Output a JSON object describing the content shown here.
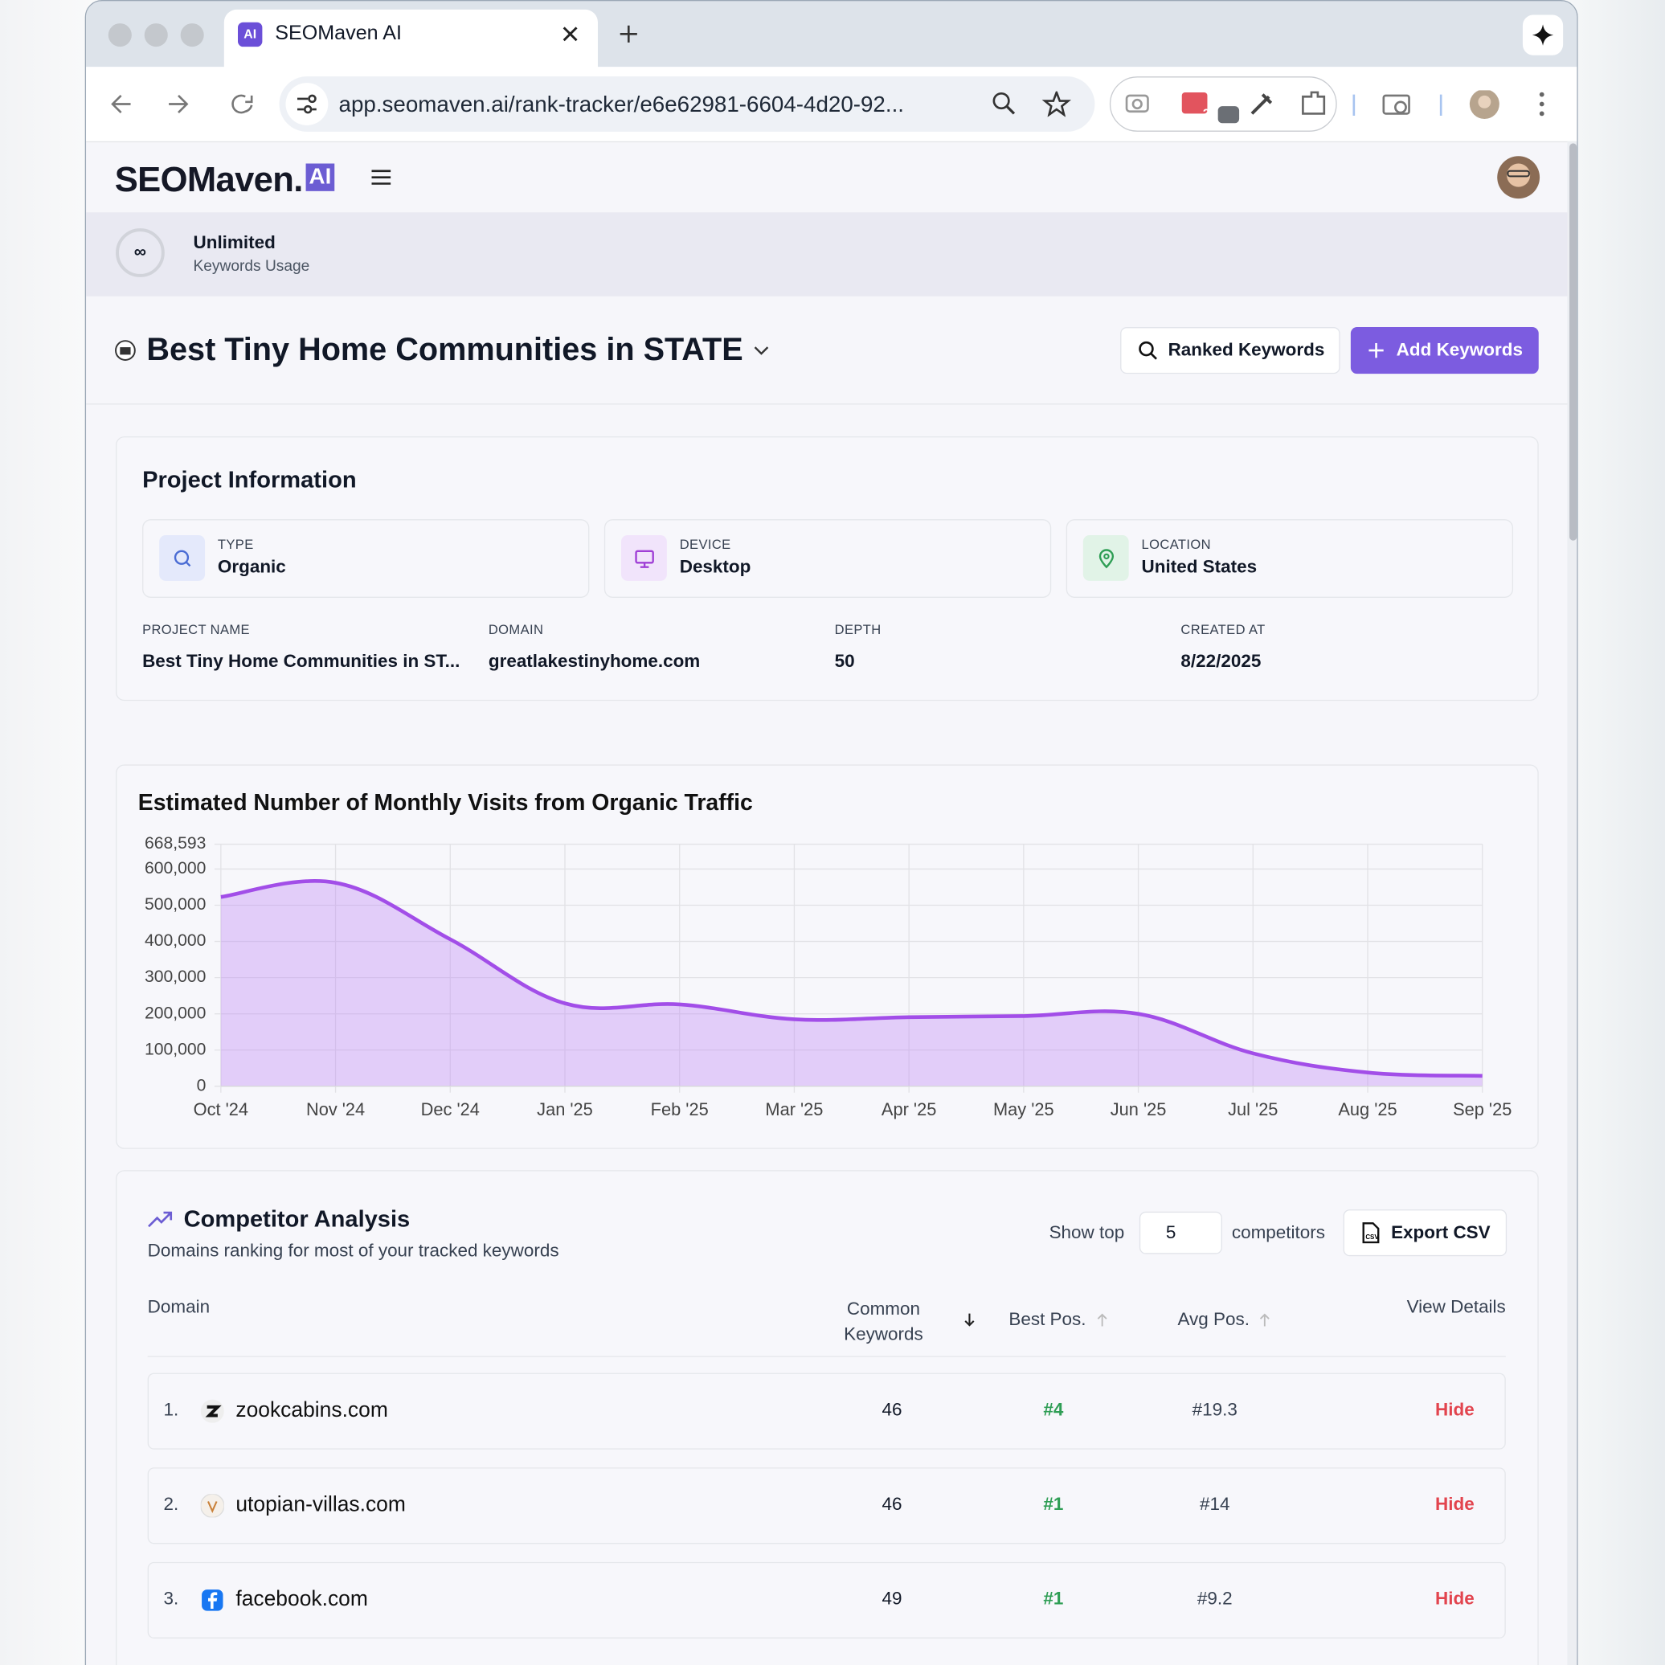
{
  "browser": {
    "tab_title": "SEOMaven AI",
    "url": "app.seomaven.ai/rank-tracker/e6e62981-6604-4d20-92...",
    "extension_badge": "2"
  },
  "app": {
    "logo": "SEOMaven.",
    "logo_badge": "AI",
    "usage": {
      "icon": "∞",
      "title": "Unlimited",
      "subtitle": "Keywords Usage"
    }
  },
  "project": {
    "title": "Best Tiny Home Communities in STATE",
    "ranked_button": "Ranked Keywords",
    "add_button": "Add Keywords"
  },
  "project_info": {
    "heading": "Project Information",
    "cards": [
      {
        "label": "TYPE",
        "value": "Organic"
      },
      {
        "label": "DEVICE",
        "value": "Desktop"
      },
      {
        "label": "LOCATION",
        "value": "United States"
      }
    ],
    "fields": [
      {
        "label": "PROJECT NAME",
        "value": "Best Tiny Home Communities in ST..."
      },
      {
        "label": "DOMAIN",
        "value": "greatlakestinyhome.com"
      },
      {
        "label": "DEPTH",
        "value": "50"
      },
      {
        "label": "CREATED AT",
        "value": "8/22/2025"
      }
    ]
  },
  "chart_data": {
    "type": "area",
    "title": "Estimated Number of Monthly Visits from Organic Traffic",
    "categories": [
      "Oct '24",
      "Nov '24",
      "Dec '24",
      "Jan '25",
      "Feb '25",
      "Mar '25",
      "Apr '25",
      "May '25",
      "Jun '25",
      "Jul '25",
      "Aug '25",
      "Sep '25"
    ],
    "values": [
      523000,
      562000,
      406000,
      229000,
      226000,
      185000,
      191000,
      194000,
      200000,
      91000,
      38000,
      29000
    ],
    "color": "#a24ee8",
    "fill": "rgba(186,120,245,0.33)",
    "ylim": [
      0,
      668593
    ],
    "yticks": [
      0,
      {
        "value": 100000,
        "label": "100,000"
      },
      {
        "value": 200000,
        "label": "200,000"
      },
      {
        "value": 300000,
        "label": "300,000"
      },
      {
        "value": 400000,
        "label": "400,000"
      },
      {
        "value": 500000,
        "label": "500,000"
      },
      {
        "value": 600000,
        "label": "600,000"
      },
      {
        "value": 668593,
        "label": "668,593"
      }
    ],
    "grid": true
  },
  "competitors": {
    "title": "Competitor Analysis",
    "subtitle": "Domains ranking for most of your tracked keywords",
    "show_top_prefix": "Show top",
    "show_top_value": 5,
    "show_top_suffix": "competitors",
    "export": "Export CSV",
    "columns": [
      "Domain",
      "Common Keywords",
      "Best Pos.",
      "Avg Pos.",
      "View Details"
    ],
    "rows": [
      {
        "rank": "1.",
        "domain": "zookcabins.com",
        "common": 46,
        "best": "#4",
        "avg": "#19.3",
        "action": "Hide"
      },
      {
        "rank": "2.",
        "domain": "utopian-villas.com",
        "common": 46,
        "best": "#1",
        "avg": "#14",
        "action": "Hide"
      },
      {
        "rank": "3.",
        "domain": "facebook.com",
        "common": 49,
        "best": "#1",
        "avg": "#9.2",
        "action": "Hide"
      }
    ]
  }
}
